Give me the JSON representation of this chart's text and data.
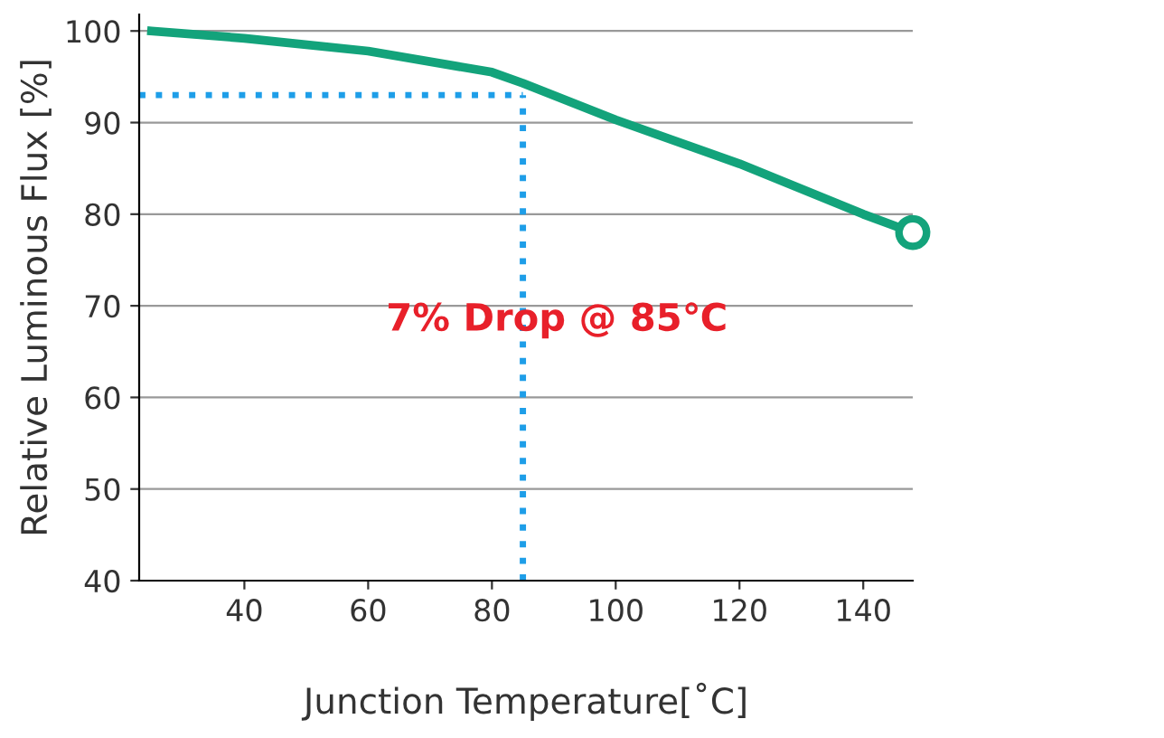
{
  "chart_data": {
    "type": "line",
    "xlabel": "Junction Temperature[˚C]",
    "ylabel": "Relative Luminous Flux [%]",
    "x": [
      25,
      40,
      60,
      80,
      85,
      100,
      120,
      140,
      148
    ],
    "series": [
      {
        "color": "#13a37b",
        "values": [
          100,
          99.2,
          97.8,
          95.5,
          94.3,
          90.3,
          85.5,
          80,
          78
        ]
      }
    ],
    "xlim": [
      23,
      148
    ],
    "xticks": [
      40,
      60,
      80,
      100,
      120,
      140
    ],
    "ylim": [
      40,
      101.8
    ],
    "yticks": [
      40,
      50,
      60,
      70,
      80,
      90,
      100
    ],
    "grid": "y",
    "ref_lines": [
      {
        "axis": "y",
        "value": 93,
        "color": "#1e9ee8",
        "line_style": "dotted"
      },
      {
        "axis": "x",
        "value": 85,
        "color": "#1e9ee8",
        "line_style": "dotted"
      }
    ],
    "annotations": [
      "7% Drop @ 85℃"
    ]
  }
}
